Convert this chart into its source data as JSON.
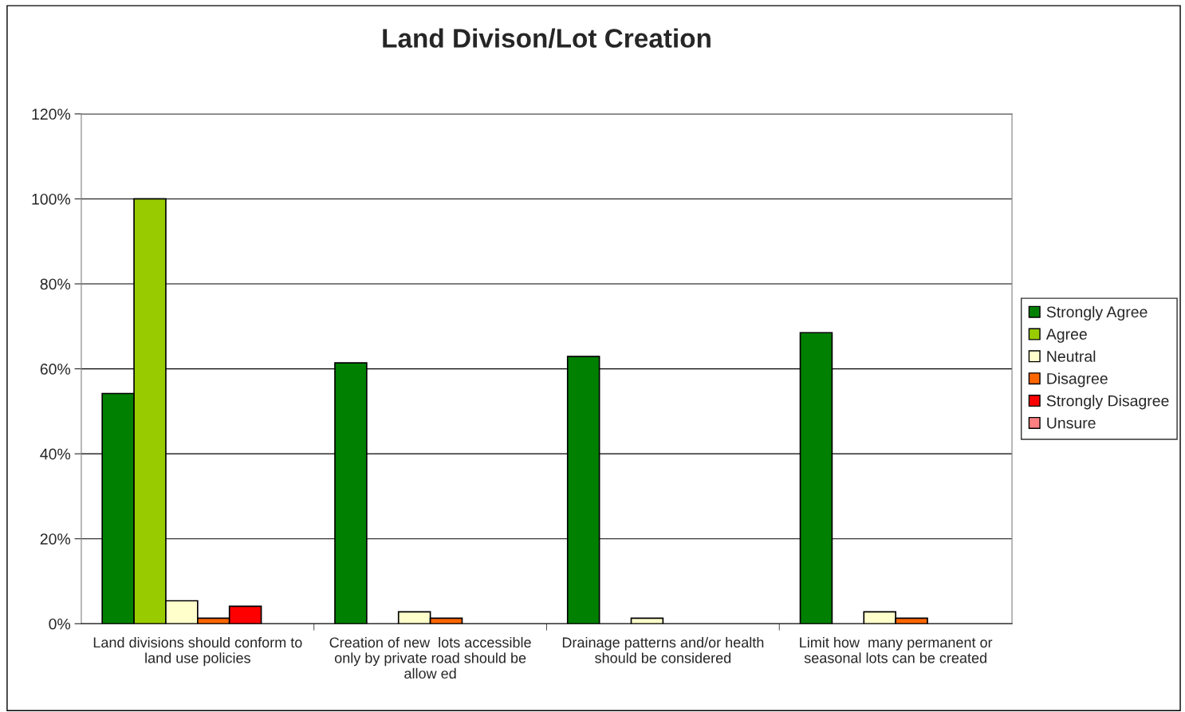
{
  "chart_data": {
    "type": "bar",
    "title": "Land Divison/Lot Creation",
    "categories": [
      "Land divisions should conform to\nland use policies",
      "Creation of new  lots accessible\nonly by private road should be\nallow ed",
      "Drainage patterns and/or health\nshould be considered",
      "Limit how  many permanent or\nseasonal lots can be created"
    ],
    "series": [
      {
        "name": "Strongly Agree",
        "color": "#008000",
        "values": [
          54.2,
          61.4,
          62.9,
          68.5
        ]
      },
      {
        "name": "Agree",
        "color": "#99cc00",
        "values": [
          100,
          null,
          null,
          null
        ]
      },
      {
        "name": "Neutral",
        "color": "#ffffcc",
        "values": [
          5.4,
          2.8,
          1.3,
          2.8
        ]
      },
      {
        "name": "Disagree",
        "color": "#ff6600",
        "values": [
          1.3,
          1.3,
          null,
          1.3
        ]
      },
      {
        "name": "Strongly Disagree",
        "color": "#ff0000",
        "values": [
          4.1,
          null,
          null,
          null
        ]
      },
      {
        "name": "Unsure",
        "color": "#ff8080",
        "values": [
          null,
          null,
          null,
          null
        ]
      }
    ],
    "ylim": [
      0,
      120
    ],
    "yticks": [
      {
        "value": 0,
        "label": "0%"
      },
      {
        "value": 20,
        "label": "20%"
      },
      {
        "value": 40,
        "label": "40%"
      },
      {
        "value": 60,
        "label": "60%"
      },
      {
        "value": 80,
        "label": "80%"
      },
      {
        "value": 100,
        "label": "100%"
      },
      {
        "value": 120,
        "label": "120%"
      }
    ],
    "grid": "y",
    "legend": "right"
  }
}
